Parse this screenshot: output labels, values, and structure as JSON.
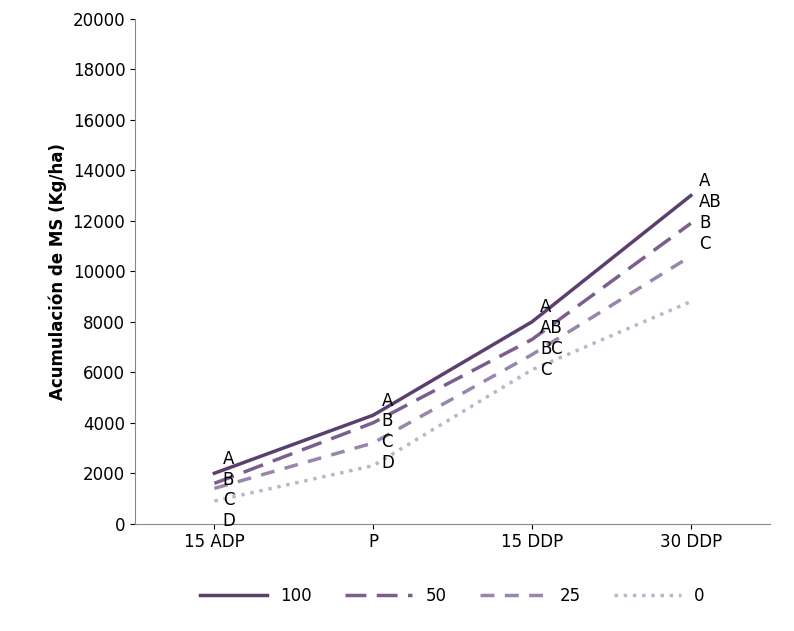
{
  "chart_data": {
    "type": "line",
    "y_label": "Acumulación de MS (Kg/ha)",
    "categories": [
      "15 ADP",
      "P",
      "15 DDP",
      "30 DDP"
    ],
    "series": [
      {
        "name": "100",
        "color": "#5b3f6e",
        "line_style": "solid",
        "values": [
          2000,
          4300,
          8000,
          13000
        ]
      },
      {
        "name": "50",
        "color": "#7b5e8e",
        "line_style": "dashed",
        "values": [
          1600,
          4000,
          7300,
          11900
        ]
      },
      {
        "name": "25",
        "color": "#9a86aa",
        "line_style": "dashed",
        "values": [
          1400,
          3200,
          6700,
          10600
        ]
      },
      {
        "name": "0",
        "color": "#c0b4cc",
        "line_style": "dotted",
        "values": [
          900,
          2300,
          6100,
          8800
        ]
      }
    ],
    "annotations": [
      {
        "series": "100",
        "category": "15 ADP",
        "text": "A"
      },
      {
        "series": "50",
        "category": "15 ADP",
        "text": "B"
      },
      {
        "series": "25",
        "category": "15 ADP",
        "text": "C"
      },
      {
        "series": "0",
        "category": "15 ADP",
        "text": "D"
      },
      {
        "series": "100",
        "category": "P",
        "text": "A"
      },
      {
        "series": "50",
        "category": "P",
        "text": "B"
      },
      {
        "series": "25",
        "category": "P",
        "text": "C"
      },
      {
        "series": "0",
        "category": "P",
        "text": "D"
      },
      {
        "series": "100",
        "category": "15 DDP",
        "text": "A"
      },
      {
        "series": "50",
        "category": "15 DDP",
        "text": "AB"
      },
      {
        "series": "25",
        "category": "15 DDP",
        "text": "BC"
      },
      {
        "series": "0",
        "category": "15 DDP",
        "text": "C"
      },
      {
        "series": "100",
        "category": "30 DDP",
        "text": "A"
      },
      {
        "series": "50",
        "category": "30 DDP",
        "text": "AB"
      },
      {
        "series": "25",
        "category": "30 DDP",
        "text": "B"
      },
      {
        "series": "0",
        "category": "30 DDP",
        "text": "C"
      }
    ],
    "ylim": [
      0,
      20000
    ],
    "yticks": [
      0,
      2000,
      4000,
      6000,
      8000,
      10000,
      12000,
      14000,
      16000,
      18000,
      20000
    ],
    "grid": false,
    "legend": "lower center"
  }
}
